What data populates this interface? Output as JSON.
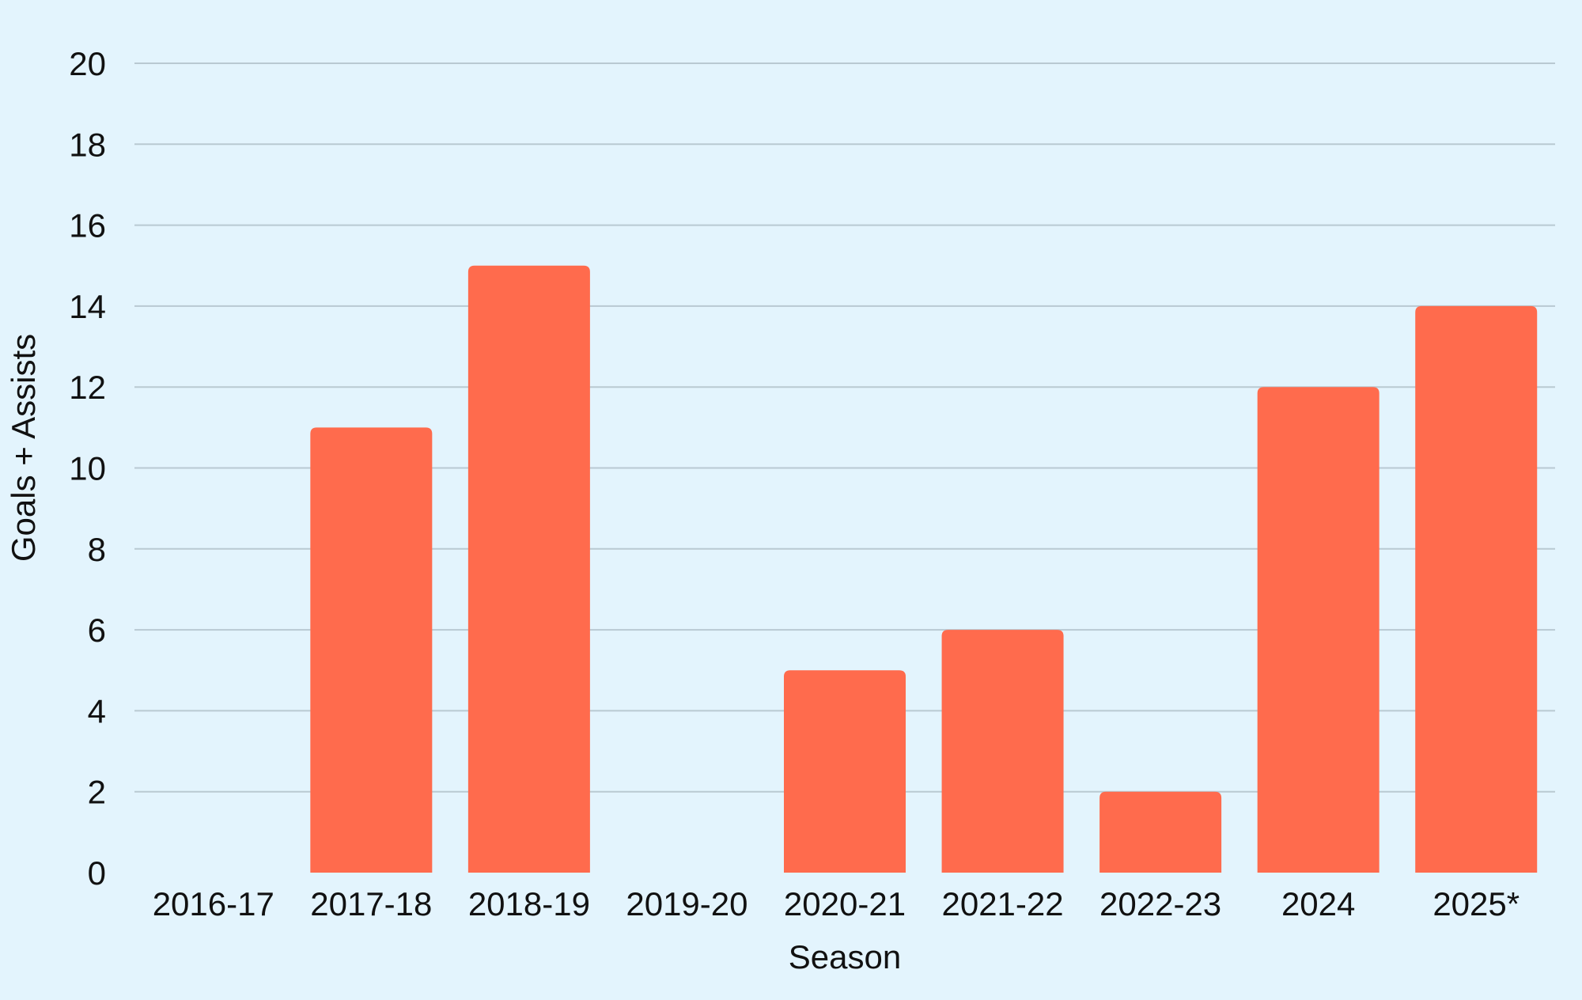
{
  "chart_data": {
    "type": "bar",
    "categories": [
      "2016-17",
      "2017-18",
      "2018-19",
      "2019-20",
      "2020-21",
      "2021-22",
      "2022-23",
      "2024",
      "2025*"
    ],
    "series": [
      {
        "values": [
          0,
          11,
          15,
          0,
          5,
          6,
          2,
          12,
          14
        ]
      }
    ],
    "xlabel": "Season",
    "ylabel": "Goals + Assists",
    "ylim": [
      0,
      20
    ],
    "yticks": [
      "0",
      "2",
      "4",
      "6",
      "8",
      "10",
      "12",
      "14",
      "16",
      "18",
      "20"
    ],
    "grid": true,
    "legend": "none",
    "colors": {
      "background": "#e3f4fd",
      "bar": "#ff6b4d",
      "grid": "#b9c9d2",
      "text": "#111111"
    }
  }
}
